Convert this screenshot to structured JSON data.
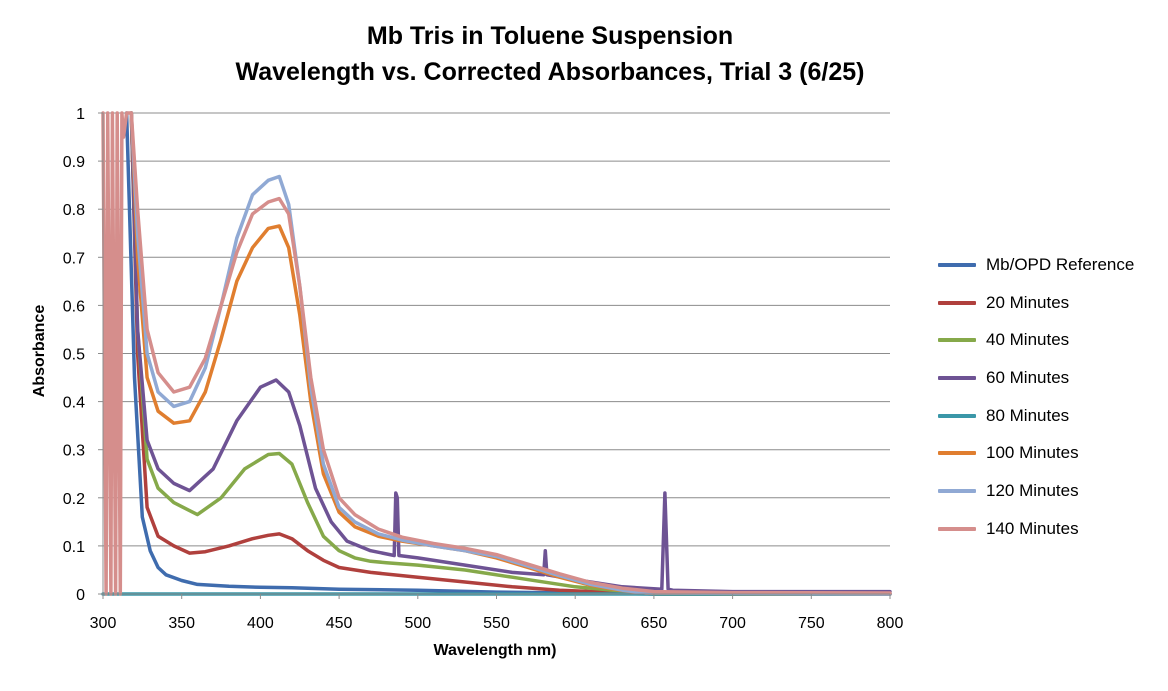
{
  "chart_data": {
    "type": "line",
    "title_line1": "Mb Tris in Toluene Suspension",
    "title_line2": "Wavelength vs. Corrected Absorbances, Trial 3 (6/25)",
    "xlabel": "Wavelength nm)",
    "ylabel": "Absorbance",
    "xlim": [
      300,
      800
    ],
    "ylim": [
      0,
      1
    ],
    "x_ticks": [
      "300",
      "350",
      "400",
      "450",
      "500",
      "550",
      "600",
      "650",
      "700",
      "750",
      "800"
    ],
    "y_ticks": [
      "0",
      "0.1",
      "0.2",
      "0.3",
      "0.4",
      "0.5",
      "0.6",
      "0.7",
      "0.8",
      "0.9",
      "1"
    ],
    "grid": "horizontal",
    "legend_position": "right",
    "series": [
      {
        "name": "Mb/OPD Reference",
        "color": "#3f6cae",
        "x": [
          315,
          320,
          325,
          330,
          335,
          340,
          350,
          360,
          380,
          400,
          420,
          450,
          500,
          550,
          600,
          650,
          800
        ],
        "y": [
          1.0,
          0.45,
          0.16,
          0.09,
          0.055,
          0.04,
          0.028,
          0.02,
          0.016,
          0.014,
          0.013,
          0.01,
          0.008,
          0.004,
          0.002,
          0.0,
          0.0
        ]
      },
      {
        "name": "20 Minutes",
        "color": "#b0403d",
        "x": [
          318,
          322,
          328,
          335,
          345,
          355,
          365,
          380,
          395,
          405,
          412,
          420,
          430,
          440,
          450,
          470,
          500,
          530,
          560,
          590,
          620,
          650,
          800
        ],
        "y": [
          1.0,
          0.5,
          0.18,
          0.12,
          0.1,
          0.085,
          0.088,
          0.1,
          0.115,
          0.122,
          0.125,
          0.115,
          0.09,
          0.07,
          0.055,
          0.045,
          0.035,
          0.025,
          0.015,
          0.008,
          0.004,
          0.0,
          0.0
        ]
      },
      {
        "name": "40 Minutes",
        "color": "#86a94a",
        "x": [
          318,
          322,
          328,
          335,
          345,
          360,
          375,
          390,
          405,
          412,
          420,
          430,
          440,
          450,
          460,
          470,
          480,
          500,
          530,
          560,
          600,
          650,
          800
        ],
        "y": [
          1.0,
          0.55,
          0.28,
          0.22,
          0.19,
          0.165,
          0.2,
          0.26,
          0.29,
          0.292,
          0.27,
          0.19,
          0.12,
          0.09,
          0.075,
          0.068,
          0.065,
          0.06,
          0.05,
          0.035,
          0.015,
          0.0,
          0.0
        ]
      },
      {
        "name": "60 Minutes",
        "color": "#6e5394",
        "x": [
          318,
          322,
          328,
          335,
          345,
          355,
          370,
          385,
          400,
          410,
          418,
          425,
          435,
          445,
          455,
          470,
          485,
          486,
          487,
          488,
          500,
          530,
          560,
          580,
          581,
          582,
          600,
          630,
          655,
          657,
          659,
          662,
          700,
          800
        ],
        "y": [
          1.0,
          0.55,
          0.32,
          0.26,
          0.23,
          0.215,
          0.26,
          0.36,
          0.43,
          0.445,
          0.42,
          0.35,
          0.22,
          0.15,
          0.11,
          0.09,
          0.08,
          0.21,
          0.2,
          0.08,
          0.075,
          0.06,
          0.045,
          0.04,
          0.09,
          0.04,
          0.03,
          0.015,
          0.01,
          0.21,
          0.01,
          0.008,
          0.005,
          0.005
        ]
      },
      {
        "name": "80 Minutes",
        "color": "#3a97a8",
        "x": [
          300,
          800
        ],
        "y": [
          0.0,
          0.0
        ]
      },
      {
        "name": "100 Minutes",
        "color": "#e07e2f",
        "x": [
          318,
          322,
          328,
          335,
          345,
          355,
          365,
          375,
          385,
          395,
          405,
          412,
          418,
          425,
          432,
          440,
          450,
          460,
          475,
          490,
          510,
          530,
          550,
          570,
          590,
          610,
          630,
          645,
          800
        ],
        "y": [
          1.0,
          0.7,
          0.45,
          0.38,
          0.355,
          0.36,
          0.42,
          0.53,
          0.65,
          0.72,
          0.76,
          0.765,
          0.72,
          0.58,
          0.4,
          0.25,
          0.17,
          0.14,
          0.12,
          0.11,
          0.1,
          0.09,
          0.075,
          0.055,
          0.035,
          0.018,
          0.007,
          0.002,
          0.0
        ]
      },
      {
        "name": "120 Minutes",
        "color": "#90a9d4",
        "x": [
          318,
          322,
          328,
          335,
          345,
          355,
          365,
          375,
          385,
          395,
          405,
          412,
          418,
          425,
          432,
          440,
          450,
          460,
          475,
          490,
          510,
          530,
          550,
          570,
          590,
          610,
          630,
          645,
          800
        ],
        "y": [
          1.0,
          0.75,
          0.5,
          0.42,
          0.39,
          0.4,
          0.47,
          0.6,
          0.74,
          0.83,
          0.86,
          0.868,
          0.81,
          0.64,
          0.43,
          0.27,
          0.18,
          0.15,
          0.125,
          0.112,
          0.1,
          0.09,
          0.078,
          0.058,
          0.038,
          0.02,
          0.008,
          0.002,
          0.0
        ]
      },
      {
        "name": "140 Minutes",
        "color": "#d58e8c",
        "x": [
          300,
          302,
          303,
          305,
          306,
          308,
          309,
          311,
          312,
          313,
          315,
          318,
          322,
          328,
          335,
          345,
          355,
          365,
          375,
          385,
          395,
          405,
          412,
          418,
          425,
          432,
          440,
          450,
          460,
          475,
          490,
          510,
          530,
          550,
          570,
          590,
          610,
          630,
          650,
          700,
          800
        ],
        "y": [
          1.0,
          0.0,
          1.0,
          0.0,
          1.0,
          0.0,
          1.0,
          0.0,
          1.0,
          0.95,
          1.0,
          1.0,
          0.8,
          0.55,
          0.46,
          0.42,
          0.43,
          0.49,
          0.6,
          0.71,
          0.79,
          0.815,
          0.822,
          0.79,
          0.64,
          0.45,
          0.3,
          0.2,
          0.165,
          0.135,
          0.118,
          0.105,
          0.095,
          0.082,
          0.062,
          0.042,
          0.024,
          0.012,
          0.005,
          0.003,
          0.002
        ]
      }
    ]
  }
}
